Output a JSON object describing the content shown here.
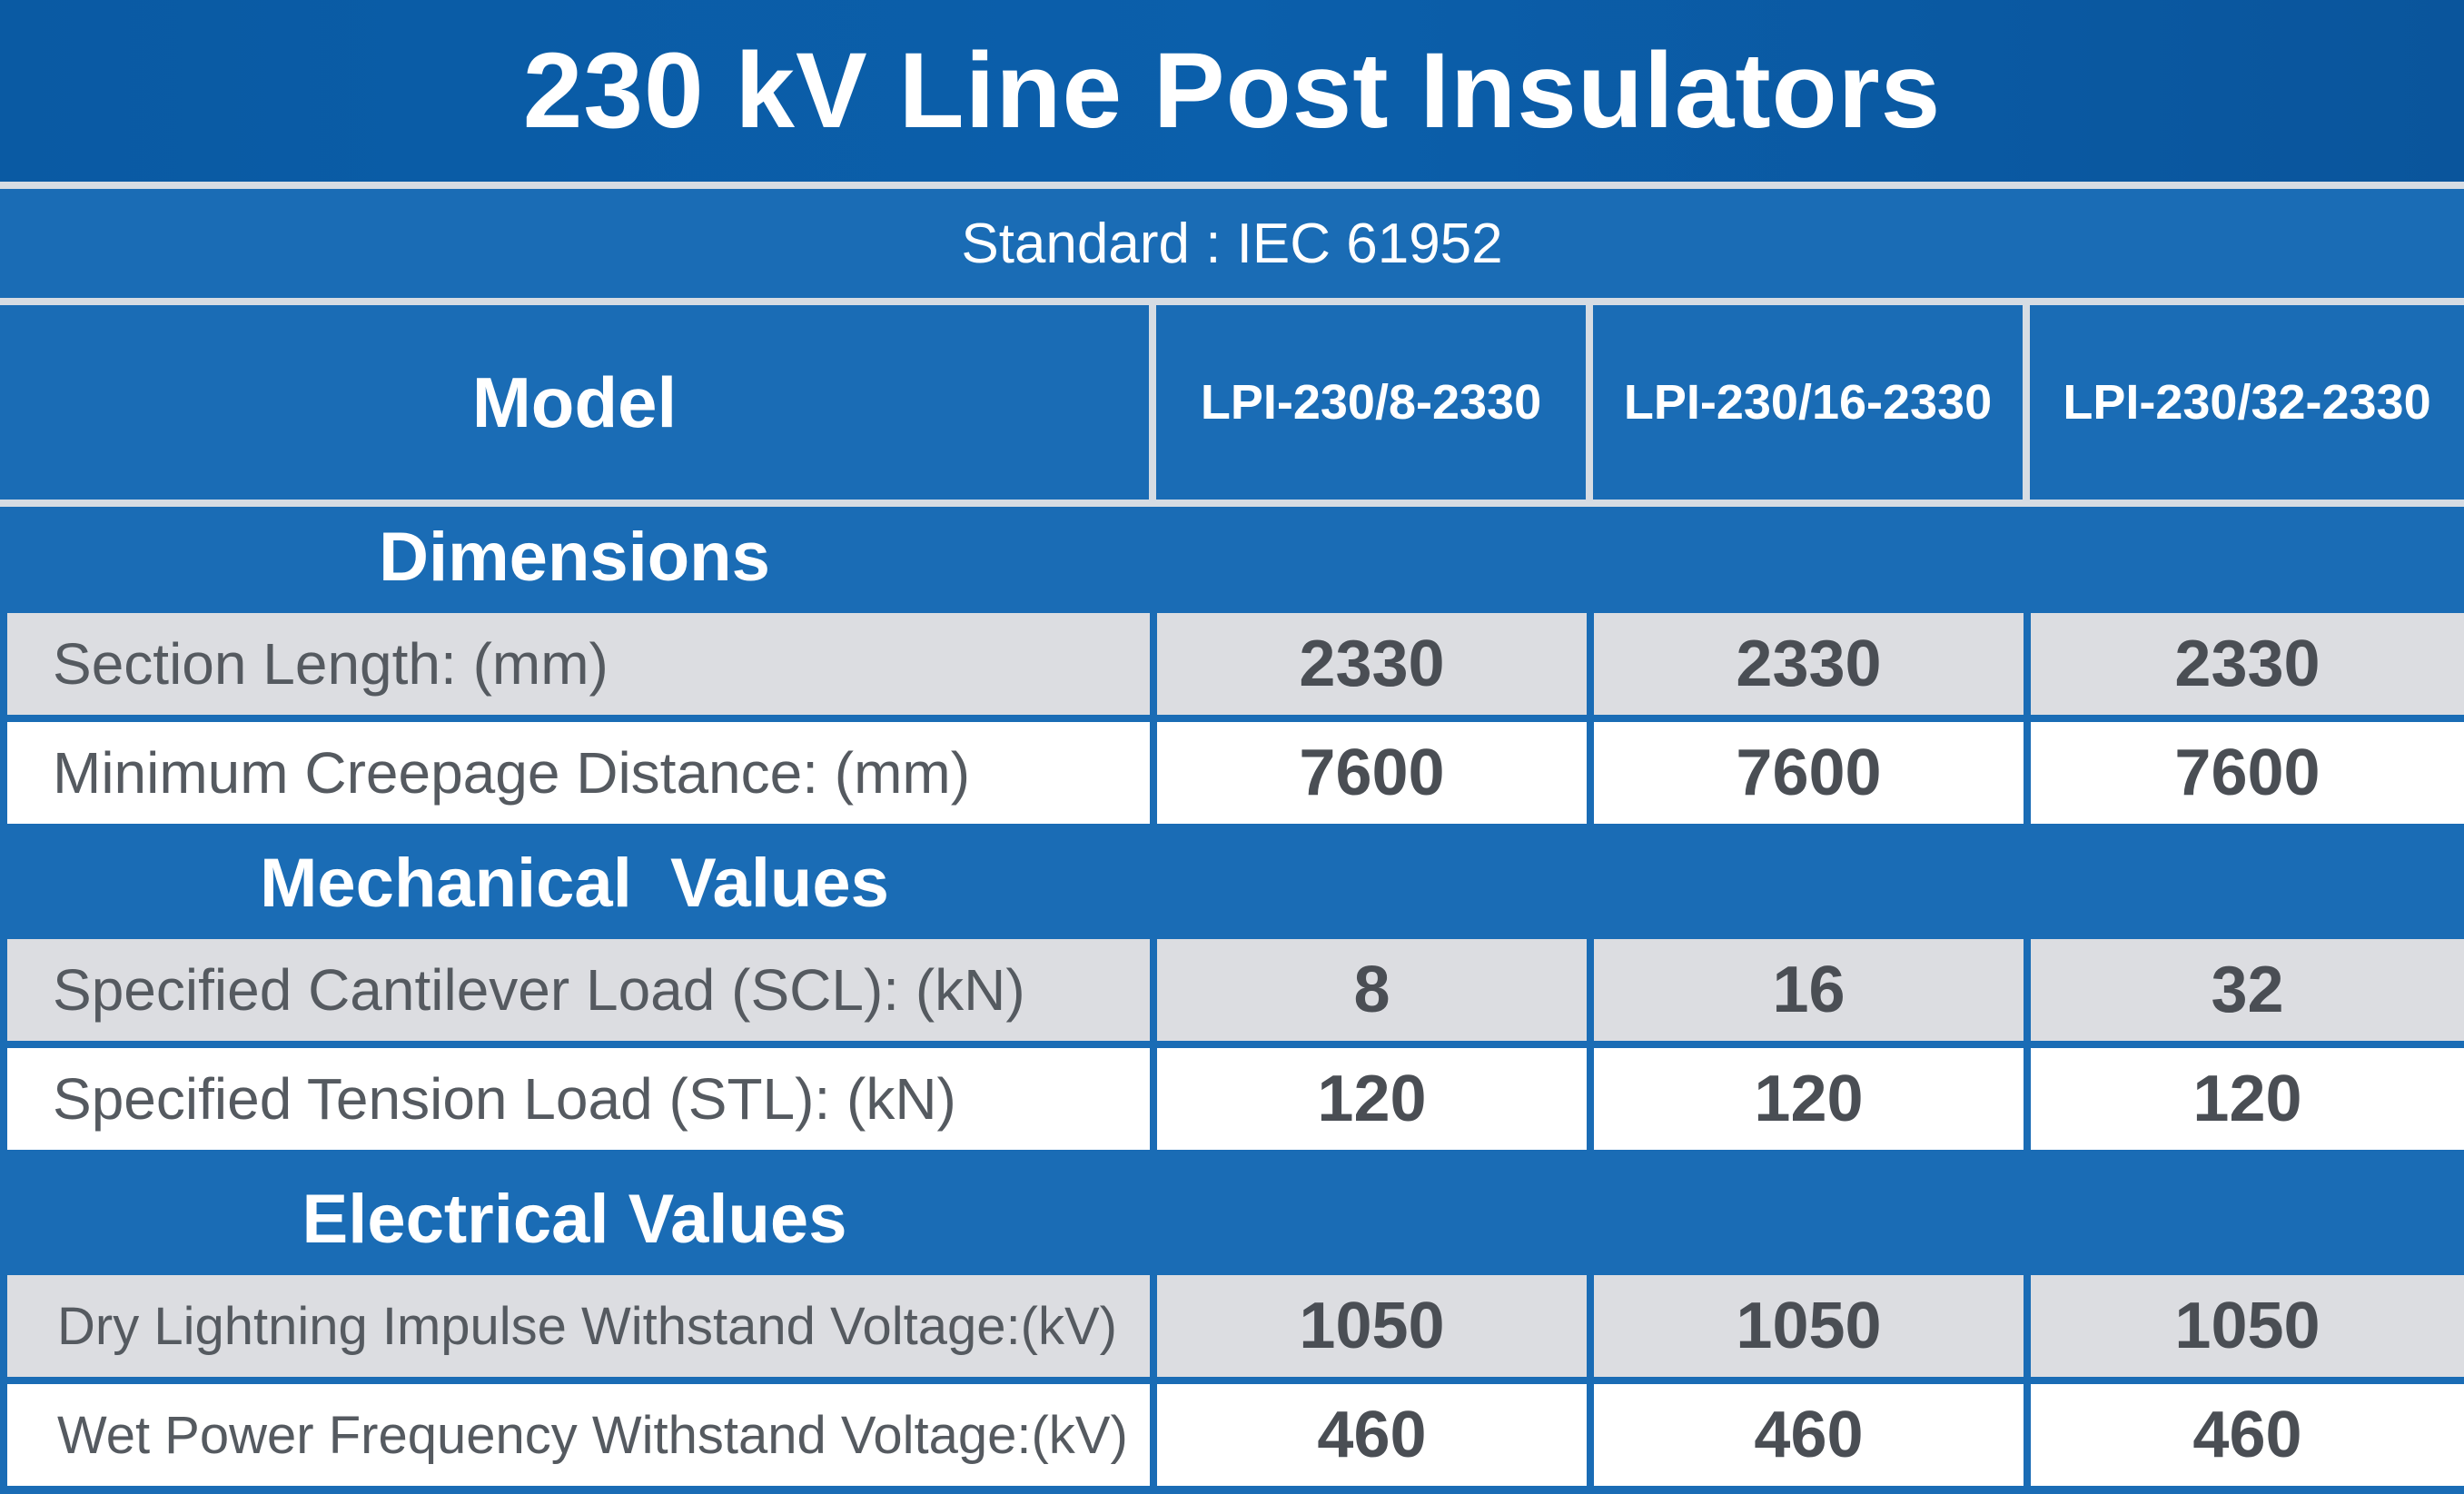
{
  "title": "230 kV Line Post Insulators",
  "standard": "Standard : IEC 61952",
  "header": {
    "model_label": "Model",
    "models": [
      "LPI-230/8-2330",
      "LPI-230/16-2330",
      "LPI-230/32-2330"
    ]
  },
  "sections": [
    {
      "title": "Dimensions",
      "rows": [
        {
          "label": "Section Length: (mm)",
          "values": [
            "2330",
            "2330",
            "2330"
          ]
        },
        {
          "label": "Minimum Creepage Distance: (mm)",
          "values": [
            "7600",
            "7600",
            "7600"
          ]
        }
      ]
    },
    {
      "title": "Mechanical  Values",
      "rows": [
        {
          "label": "Specified Cantilever Load (SCL): (kN)",
          "values": [
            "8",
            "16",
            "32"
          ]
        },
        {
          "label": "Specified Tension Load (STL): (kN)",
          "values": [
            "120",
            "120",
            "120"
          ]
        }
      ]
    },
    {
      "title": "Electrical Values",
      "rows": [
        {
          "label": "Dry Lightning Impulse Withstand Voltage:(kV)",
          "values": [
            "1050",
            "1050",
            "1050"
          ]
        },
        {
          "label": "Wet Power Frequency Withstand Voltage:(kV)",
          "values": [
            "460",
            "460",
            "460"
          ]
        }
      ]
    }
  ]
}
